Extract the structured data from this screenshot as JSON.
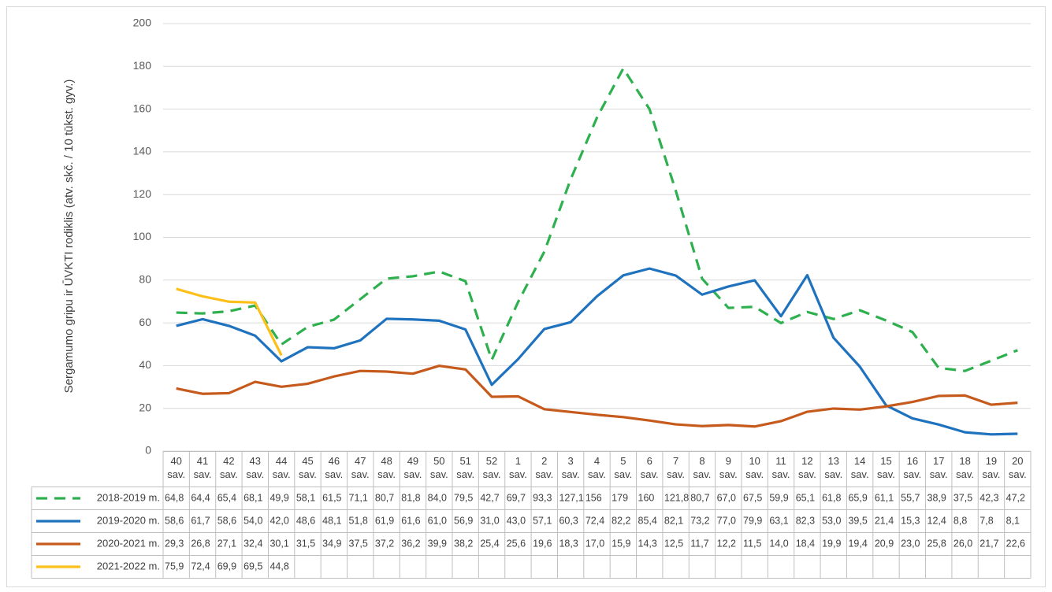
{
  "chart_data": {
    "type": "line",
    "y_label": "Sergamumo gripu ir ŪVKTI rodiklis (atv. skč. / 10 tūkst. gyv.)",
    "categories": [
      "40 sav.",
      "41 sav.",
      "42 sav.",
      "43 sav.",
      "44 sav.",
      "45 sav.",
      "46 sav.",
      "47 sav.",
      "48 sav.",
      "49 sav.",
      "50 sav.",
      "51 sav.",
      "52 sav.",
      "1 sav.",
      "2 sav.",
      "3 sav.",
      "4 sav.",
      "5 sav.",
      "6 sav.",
      "7 sav.",
      "8 sav.",
      "9 sav.",
      "10 sav.",
      "11 sav.",
      "12 sav.",
      "13 sav.",
      "14 sav.",
      "15 sav.",
      "16 sav.",
      "17 sav.",
      "18 sav.",
      "19 sav.",
      "20 sav."
    ],
    "ylim": [
      0,
      200
    ],
    "yticks": [
      0,
      20,
      40,
      60,
      80,
      100,
      120,
      140,
      160,
      180,
      200
    ],
    "grid": true,
    "series": [
      {
        "name": "2018-2019 m.",
        "color": "#2eb04f",
        "dashed": true,
        "values": [
          64.8,
          64.4,
          65.4,
          68.1,
          49.9,
          58.1,
          61.5,
          71.1,
          80.7,
          81.8,
          84.0,
          79.5,
          42.7,
          69.7,
          93.3,
          127.1,
          156,
          179,
          160,
          121.8,
          80.7,
          67.0,
          67.5,
          59.9,
          65.1,
          61.8,
          65.9,
          61.1,
          55.7,
          38.9,
          37.5,
          42.3,
          47.2
        ],
        "value_labels": [
          "64,8",
          "64,4",
          "65,4",
          "68,1",
          "49,9",
          "58,1",
          "61,5",
          "71,1",
          "80,7",
          "81,8",
          "84,0",
          "79,5",
          "42,7",
          "69,7",
          "93,3",
          "127,1",
          "156",
          "179",
          "160",
          "121,8",
          "80,7",
          "67,0",
          "67,5",
          "59,9",
          "65,1",
          "61,8",
          "65,9",
          "61,1",
          "55,7",
          "38,9",
          "37,5",
          "42,3",
          "47,2"
        ]
      },
      {
        "name": "2019-2020 m.",
        "color": "#1f72be",
        "dashed": false,
        "values": [
          58.6,
          61.7,
          58.6,
          54.0,
          42.0,
          48.6,
          48.1,
          51.8,
          61.9,
          61.6,
          61.0,
          56.9,
          31.0,
          43.0,
          57.1,
          60.3,
          72.4,
          82.2,
          85.4,
          82.1,
          73.2,
          77.0,
          79.9,
          63.1,
          82.3,
          53.0,
          39.5,
          21.4,
          15.3,
          12.4,
          8.8,
          7.8,
          8.1
        ],
        "value_labels": [
          "58,6",
          "61,7",
          "58,6",
          "54,0",
          "42,0",
          "48,6",
          "48,1",
          "51,8",
          "61,9",
          "61,6",
          "61,0",
          "56,9",
          "31,0",
          "43,0",
          "57,1",
          "60,3",
          "72,4",
          "82,2",
          "85,4",
          "82,1",
          "73,2",
          "77,0",
          "79,9",
          "63,1",
          "82,3",
          "53,0",
          "39,5",
          "21,4",
          "15,3",
          "12,4",
          "8,8",
          "7,8",
          "8,1"
        ]
      },
      {
        "name": "2020-2021 m.",
        "color": "#c55a1c",
        "dashed": false,
        "values": [
          29.3,
          26.8,
          27.1,
          32.4,
          30.1,
          31.5,
          34.9,
          37.5,
          37.2,
          36.2,
          39.9,
          38.2,
          25.4,
          25.6,
          19.6,
          18.3,
          17.0,
          15.9,
          14.3,
          12.5,
          11.7,
          12.2,
          11.5,
          14.0,
          18.4,
          19.9,
          19.4,
          20.9,
          23.0,
          25.8,
          26.0,
          21.7,
          22.6
        ],
        "value_labels": [
          "29,3",
          "26,8",
          "27,1",
          "32,4",
          "30,1",
          "31,5",
          "34,9",
          "37,5",
          "37,2",
          "36,2",
          "39,9",
          "38,2",
          "25,4",
          "25,6",
          "19,6",
          "18,3",
          "17,0",
          "15,9",
          "14,3",
          "12,5",
          "11,7",
          "12,2",
          "11,5",
          "14,0",
          "18,4",
          "19,9",
          "19,4",
          "20,9",
          "23,0",
          "25,8",
          "26,0",
          "21,7",
          "22,6"
        ]
      },
      {
        "name": "2021-2022 m.",
        "color": "#fdbf1a",
        "dashed": false,
        "values": [
          75.9,
          72.4,
          69.9,
          69.5,
          44.8,
          null,
          null,
          null,
          null,
          null,
          null,
          null,
          null,
          null,
          null,
          null,
          null,
          null,
          null,
          null,
          null,
          null,
          null,
          null,
          null,
          null,
          null,
          null,
          null,
          null,
          null,
          null,
          null
        ],
        "value_labels": [
          "75,9",
          "72,4",
          "69,9",
          "69,5",
          "44,8",
          null,
          null,
          null,
          null,
          null,
          null,
          null,
          null,
          null,
          null,
          null,
          null,
          null,
          null,
          null,
          null,
          null,
          null,
          null,
          null,
          null,
          null,
          null,
          null,
          null,
          null,
          null,
          null
        ]
      }
    ]
  }
}
